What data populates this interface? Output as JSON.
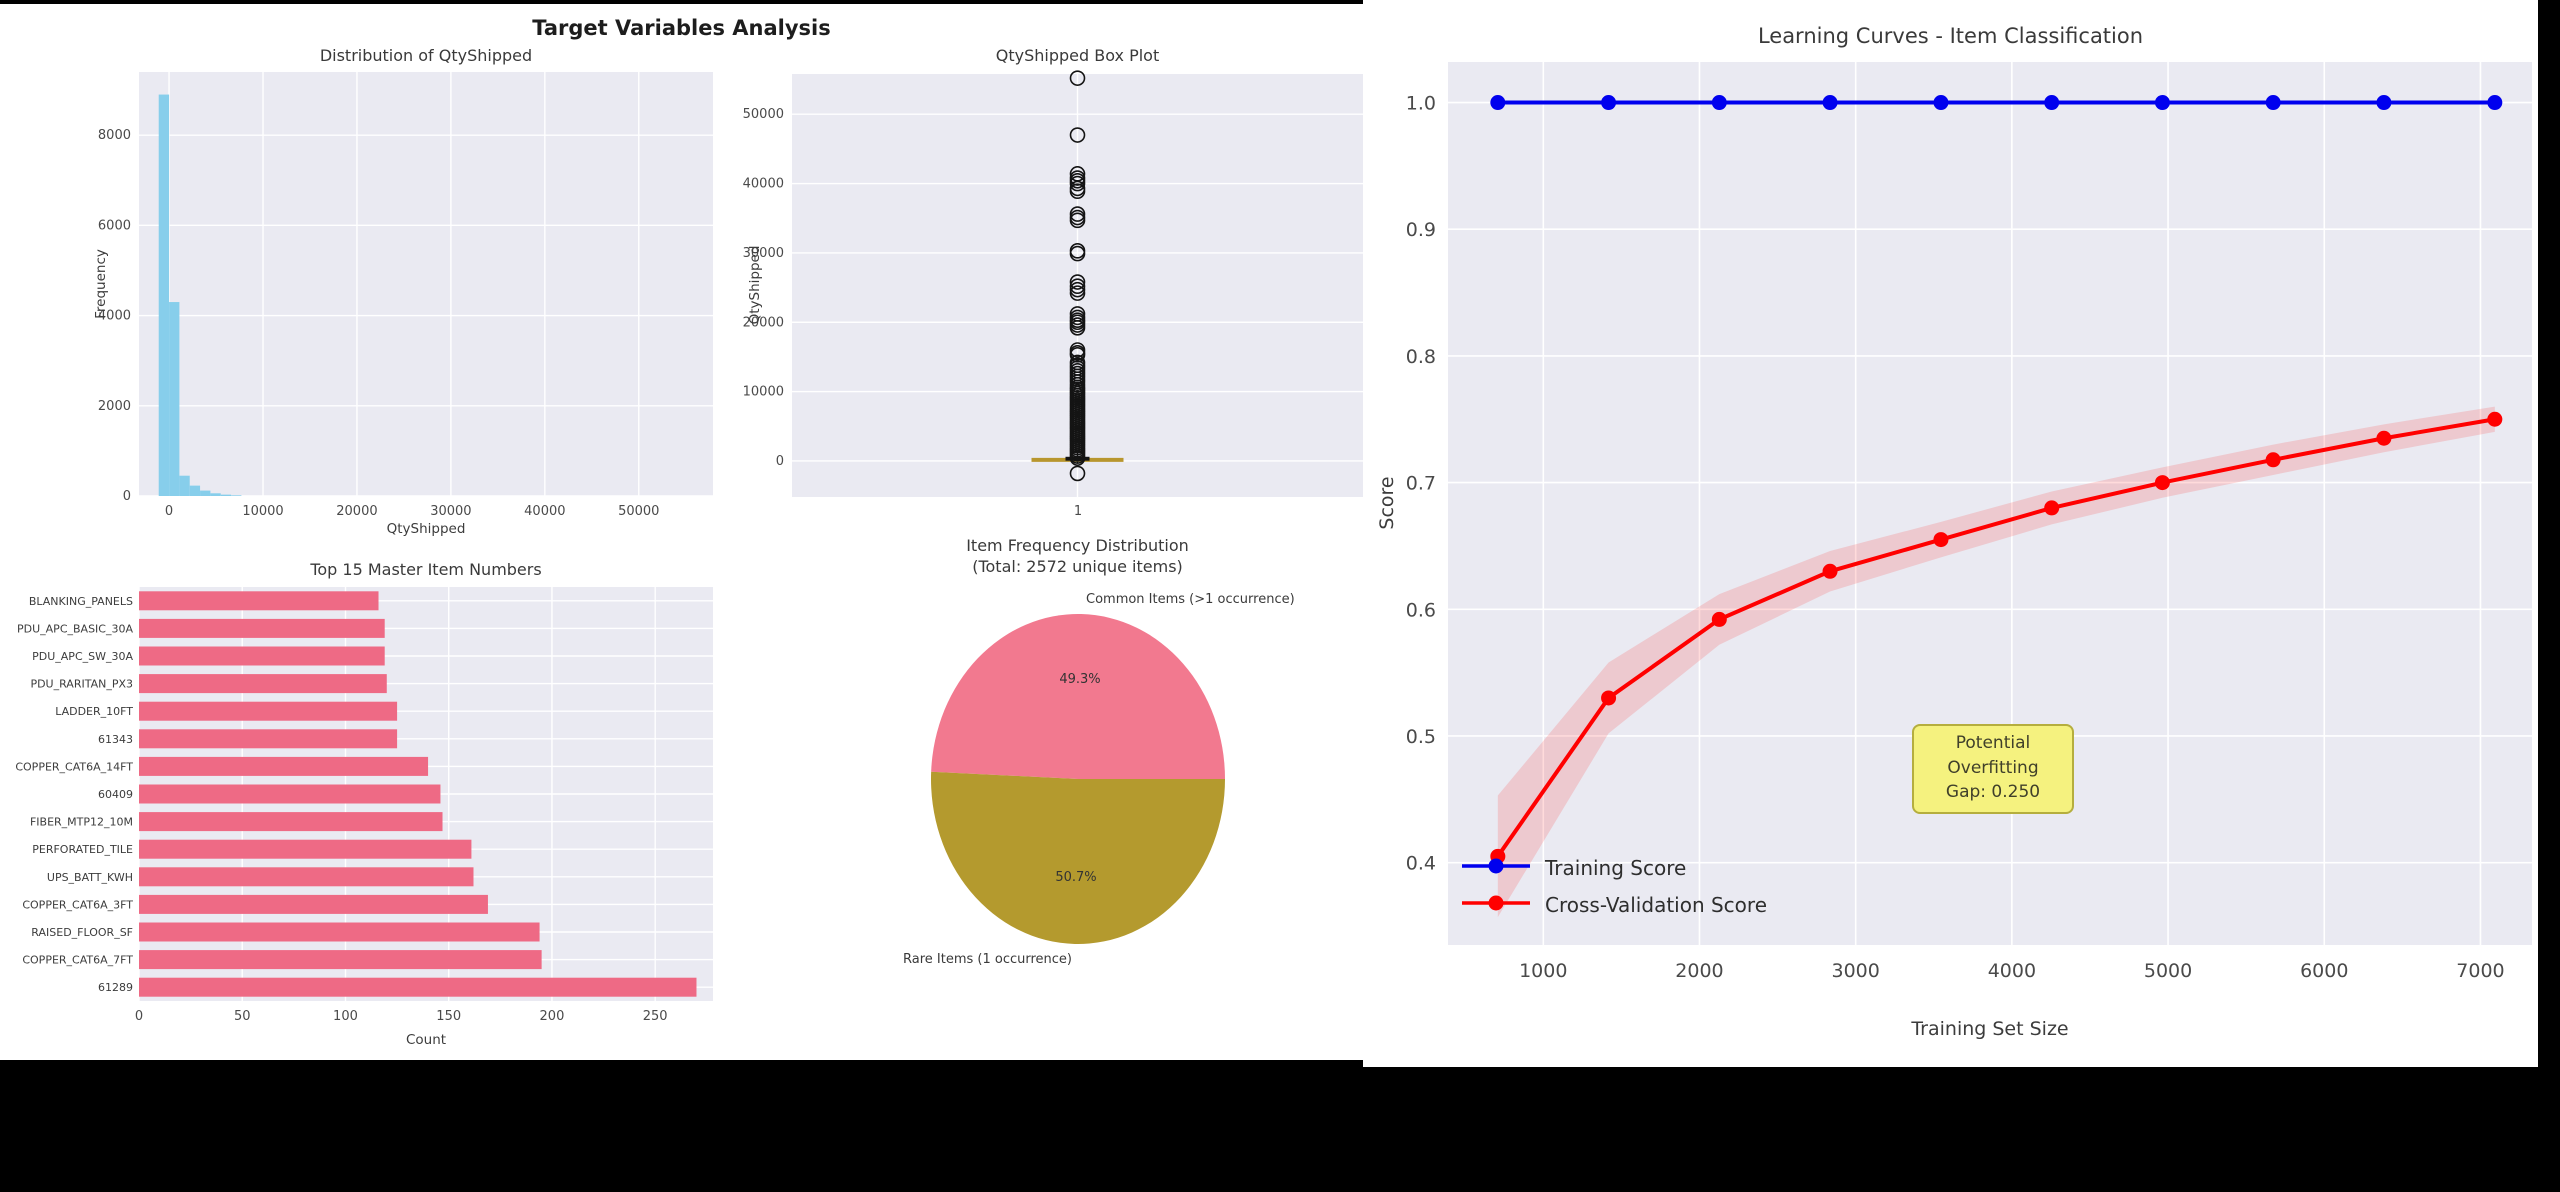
{
  "colors": {
    "page_bg": "#000000",
    "figure_bg": "#ffffff",
    "axes_bg": "#eaeaf2",
    "grid": "#ffffff",
    "tick_text": "#4a4a4a"
  },
  "left_figure": {
    "suptitle": "Target Variables Analysis"
  },
  "chart_data": [
    {
      "id": "qty_histogram",
      "type": "bar",
      "subtype": "histogram",
      "title": "Distribution of QtyShipped",
      "xlabel": "QtyShipped",
      "ylabel": "Frequency",
      "bin_start": -1100,
      "bin_width": 1100,
      "counts": [
        8900,
        4300,
        450,
        230,
        120,
        60,
        30,
        15
      ],
      "x_ticks": [
        0,
        10000,
        20000,
        30000,
        40000,
        50000
      ],
      "y_ticks": [
        0,
        2000,
        4000,
        6000,
        8000
      ],
      "xlim": [
        -3200,
        57900
      ],
      "ylim": [
        0,
        9400
      ],
      "bar_color": "#87ceeb",
      "grid": true
    },
    {
      "id": "qty_boxplot",
      "type": "boxplot",
      "title": "QtyShipped Box Plot",
      "ylabel": "QtyShipped",
      "x_tick_label": "1",
      "y_ticks": [
        0,
        10000,
        20000,
        30000,
        40000,
        50000
      ],
      "ylim": [
        -5200,
        55800
      ],
      "q1": 40,
      "median": 150,
      "q3": 600,
      "whisker_low": -400,
      "whisker_high": 1400,
      "box_color": "#141414",
      "median_color": "#b8962e",
      "outliers": [
        -1800,
        400,
        700,
        1000,
        1300,
        1600,
        1900,
        2200,
        2500,
        2800,
        3100,
        3400,
        3700,
        4000,
        4300,
        4600,
        4900,
        5200,
        5500,
        5800,
        6100,
        6400,
        6700,
        7000,
        7300,
        7600,
        7900,
        8200,
        8500,
        8800,
        9100,
        9400,
        9700,
        10000,
        10300,
        10600,
        11000,
        11400,
        11800,
        12200,
        12600,
        13000,
        13400,
        13800,
        14200,
        15300,
        15600,
        16000,
        19200,
        19600,
        20000,
        20300,
        20700,
        21200,
        24200,
        24700,
        25200,
        25800,
        29900,
        30300,
        34700,
        35100,
        35600,
        38900,
        39300,
        40000,
        40400,
        40800,
        41400,
        47000,
        55200
      ],
      "grid": true
    },
    {
      "id": "top15_master_items",
      "type": "bar",
      "orientation": "horizontal",
      "title": "Top 15 Master Item Numbers",
      "xlabel": "Count",
      "categories": [
        "BLANKING_PANELS",
        "PDU_APC_BASIC_30A",
        "PDU_APC_SW_30A",
        "PDU_RARITAN_PX3",
        "LADDER_10FT",
        "61343",
        "COPPER_CAT6A_14FT",
        "60409",
        "FIBER_MTP12_10M",
        "PERFORATED_TILE",
        "UPS_BATT_KWH",
        "COPPER_CAT6A_3FT",
        "RAISED_FLOOR_SF",
        "COPPER_CAT6A_7FT",
        "61289"
      ],
      "values": [
        116,
        119,
        119,
        120,
        125,
        125,
        140,
        146,
        147,
        161,
        162,
        169,
        194,
        195,
        270
      ],
      "x_ticks": [
        0,
        50,
        100,
        150,
        200,
        250
      ],
      "xlim": [
        0,
        278
      ],
      "bar_color": "#ee6a85",
      "grid": true
    },
    {
      "id": "item_frequency_pie",
      "type": "pie",
      "title": "Item Frequency Distribution",
      "subtitle": "(Total: 2572 unique items)",
      "start_angle": 0,
      "direction": "counterclockwise",
      "slices": [
        {
          "label": "Common Items (>1 occurrence)",
          "value": 49.3,
          "pct_label": "49.3%",
          "color": "#f2798f"
        },
        {
          "label": "Rare Items (1 occurrence)",
          "value": 50.7,
          "pct_label": "50.7%",
          "color": "#b49a2e"
        }
      ]
    },
    {
      "id": "learning_curves",
      "type": "line",
      "title": "Learning Curves - Item Classification",
      "xlabel": "Training Set Size",
      "ylabel": "Score",
      "x": [
        709,
        1418,
        2127,
        2836,
        3546,
        4255,
        4964,
        5673,
        6382,
        7092
      ],
      "series": [
        {
          "name": "Training Score",
          "color": "#0000ee",
          "values": [
            1.0,
            1.0,
            1.0,
            1.0,
            1.0,
            1.0,
            1.0,
            1.0,
            1.0,
            1.0
          ]
        },
        {
          "name": "Cross-Validation Score",
          "color": "#ff0000",
          "values": [
            0.405,
            0.53,
            0.592,
            0.63,
            0.655,
            0.68,
            0.7,
            0.718,
            0.735,
            0.75
          ],
          "band_half_width": [
            0.048,
            0.028,
            0.02,
            0.016,
            0.014,
            0.013,
            0.012,
            0.012,
            0.011,
            0.01
          ],
          "band_color": "rgba(255,0,0,0.14)"
        }
      ],
      "x_ticks": [
        1000,
        2000,
        3000,
        4000,
        5000,
        6000,
        7000
      ],
      "y_ticks": [
        0.4,
        0.5,
        0.6,
        0.7,
        0.8,
        0.9,
        1.0
      ],
      "y_tick_labels": [
        "0.4",
        "0.5",
        "0.6",
        "0.7",
        "0.8",
        "0.9",
        "1.0"
      ],
      "xlim": [
        390,
        7330
      ],
      "ylim": [
        0.335,
        1.032
      ],
      "legend_position": "lower left",
      "annotation": {
        "text_line1": "Potential Overfitting",
        "text_line2": "Gap: 0.250",
        "bg_color": "#f5f27f",
        "border_color": "#b5ae3e"
      },
      "grid": true
    }
  ]
}
